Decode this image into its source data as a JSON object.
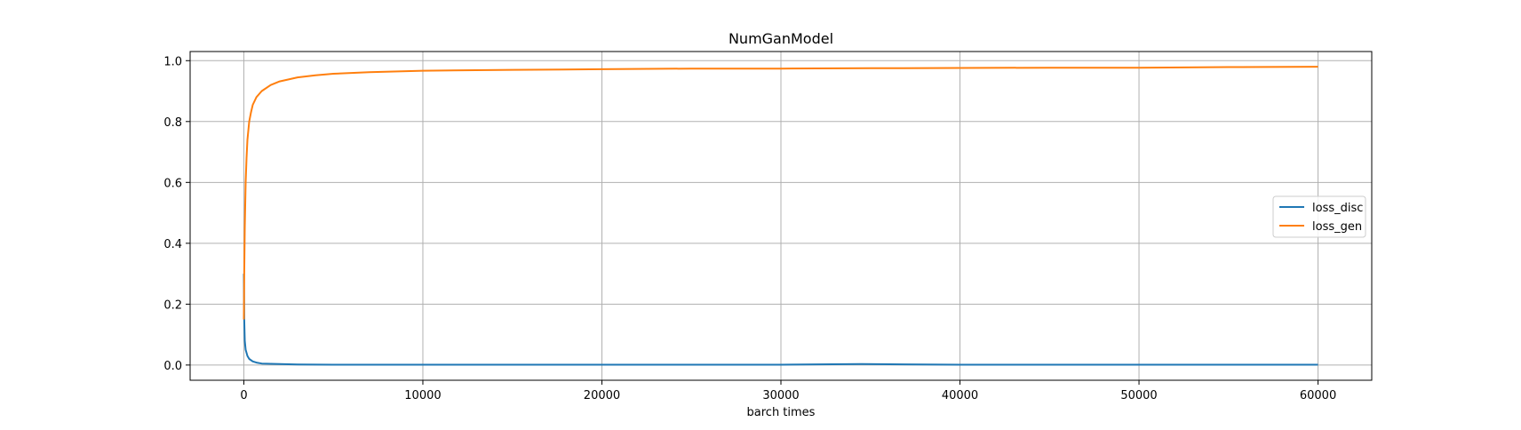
{
  "chart_data": {
    "type": "line",
    "title": "NumGanModel",
    "xlabel": "barch times",
    "ylabel": "",
    "xlim": [
      -3000,
      63000
    ],
    "ylim": [
      -0.05,
      1.03
    ],
    "xticks": [
      0,
      10000,
      20000,
      30000,
      40000,
      50000,
      60000
    ],
    "yticks": [
      0.0,
      0.2,
      0.4,
      0.6,
      0.8,
      1.0
    ],
    "xtick_labels": [
      "0",
      "10000",
      "20000",
      "30000",
      "40000",
      "50000",
      "60000"
    ],
    "ytick_labels": [
      "0.0",
      "0.2",
      "0.4",
      "0.6",
      "0.8",
      "1.0"
    ],
    "grid": true,
    "legend_position": "center-right",
    "series": [
      {
        "name": "loss_disc",
        "color": "#1f77b4",
        "x": [
          0,
          20,
          50,
          100,
          200,
          300,
          500,
          700,
          1000,
          1500,
          2000,
          3000,
          5000,
          10000,
          20000,
          30000,
          34500,
          40000,
          50000,
          60000
        ],
        "y": [
          0.3,
          0.15,
          0.08,
          0.05,
          0.03,
          0.02,
          0.012,
          0.008,
          0.005,
          0.004,
          0.003,
          0.002,
          0.001,
          0.001,
          0.001,
          0.001,
          0.003,
          0.001,
          0.001,
          0.001
        ]
      },
      {
        "name": "loss_gen",
        "color": "#ff7f0e",
        "x": [
          0,
          20,
          50,
          100,
          150,
          200,
          300,
          400,
          500,
          700,
          1000,
          1500,
          2000,
          3000,
          4000,
          5000,
          7000,
          10000,
          15000,
          20000,
          25000,
          30000,
          35000,
          40000,
          45000,
          50000,
          55000,
          60000
        ],
        "y": [
          0.15,
          0.3,
          0.45,
          0.6,
          0.68,
          0.74,
          0.8,
          0.83,
          0.855,
          0.88,
          0.9,
          0.92,
          0.932,
          0.945,
          0.952,
          0.957,
          0.962,
          0.967,
          0.97,
          0.972,
          0.974,
          0.974,
          0.975,
          0.976,
          0.977,
          0.977,
          0.979,
          0.98
        ]
      }
    ]
  }
}
